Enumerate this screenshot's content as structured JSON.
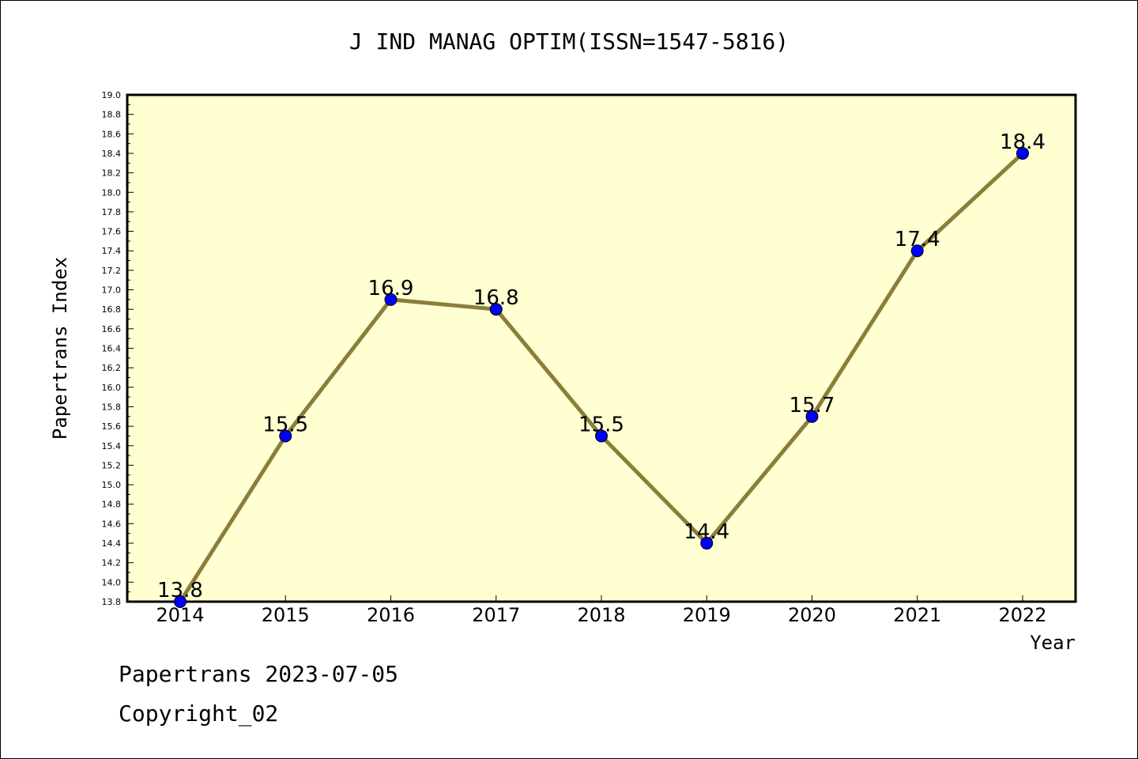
{
  "chart_data": {
    "type": "line",
    "title": "J IND MANAG OPTIM(ISSN=1547-5816)",
    "xlabel": "Year",
    "ylabel": "Papertrans Index",
    "x": [
      "2014",
      "2015",
      "2016",
      "2017",
      "2018",
      "2019",
      "2020",
      "2021",
      "2022"
    ],
    "series": [
      {
        "values": [
          13.8,
          15.5,
          16.9,
          16.8,
          15.5,
          14.4,
          15.7,
          17.4,
          18.4
        ]
      }
    ],
    "data_labels": [
      "13.8",
      "15.5",
      "16.9",
      "16.8",
      "15.5",
      "14.4",
      "15.7",
      "17.4",
      "18.4"
    ],
    "ylim": [
      13.8,
      19.0
    ],
    "ytick_step": 0.2,
    "grid": false,
    "colors": {
      "line": "#8b7d3a",
      "marker": "#0000ff",
      "plot_bg": "#ffffd2"
    }
  },
  "footer": {
    "line1": "Papertrans 2023-07-05",
    "line2": "Copyright_02"
  }
}
